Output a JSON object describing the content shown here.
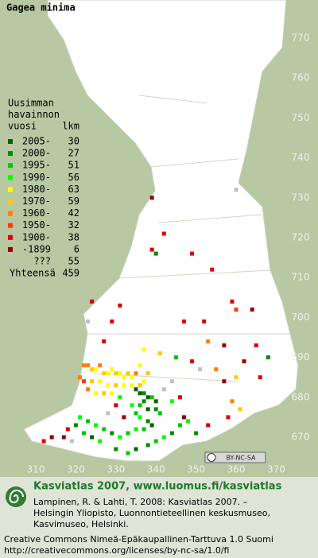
{
  "title": "Gagea minima",
  "xticks": [
    310,
    320,
    330,
    340,
    350,
    360,
    370
  ],
  "yticks": [
    670,
    680,
    690,
    700,
    710,
    720,
    730,
    740,
    750,
    760,
    770
  ],
  "legend": {
    "title": [
      "Uusimman",
      "havainnon",
      "vuosi"
    ],
    "count_header": "lkm",
    "entries": [
      {
        "label": "2005-",
        "color": "#006400",
        "count": 30
      },
      {
        "label": "2000-",
        "color": "#008c00",
        "count": 27
      },
      {
        "label": "1995-",
        "color": "#00c800",
        "count": 51
      },
      {
        "label": "1990-",
        "color": "#00ff00",
        "count": 56
      },
      {
        "label": "1980-",
        "color": "#ffff00",
        "count": 63
      },
      {
        "label": "1970-",
        "color": "#ffc800",
        "count": 59
      },
      {
        "label": "1960-",
        "color": "#ff8000",
        "count": 42
      },
      {
        "label": "1950-",
        "color": "#ff3c00",
        "count": 32
      },
      {
        "label": "1900-",
        "color": "#dc0000",
        "count": 38
      },
      {
        "label": "-1899",
        "color": "#960000",
        "count": 6
      },
      {
        "label": "???",
        "color": "#c0c0c0",
        "count": 55
      }
    ],
    "total": {
      "label": "Yhteensä",
      "value": 459
    }
  },
  "points": [
    [
      339,
      730,
      9
    ],
    [
      339,
      717,
      8
    ],
    [
      340,
      716,
      1
    ],
    [
      349,
      716,
      8
    ],
    [
      354,
      712,
      8
    ],
    [
      342,
      721,
      8
    ],
    [
      360,
      732,
      10
    ],
    [
      359,
      704,
      8
    ],
    [
      364,
      702,
      9
    ],
    [
      360,
      702,
      7
    ],
    [
      331,
      703,
      8
    ],
    [
      329,
      699,
      8
    ],
    [
      327,
      694,
      8
    ],
    [
      323,
      699,
      10
    ],
    [
      324,
      704,
      8
    ],
    [
      347,
      699,
      8
    ],
    [
      352,
      699,
      8
    ],
    [
      353,
      694,
      6
    ],
    [
      357,
      693,
      9
    ],
    [
      365,
      693,
      8
    ],
    [
      362,
      689,
      9
    ],
    [
      368,
      690,
      1
    ],
    [
      366,
      685,
      8
    ],
    [
      360,
      685,
      5
    ],
    [
      337,
      692,
      4
    ],
    [
      341,
      691,
      5
    ],
    [
      345,
      690,
      2
    ],
    [
      349,
      689,
      8
    ],
    [
      351,
      687,
      10
    ],
    [
      355,
      687,
      6
    ],
    [
      357,
      684,
      9
    ],
    [
      359,
      679,
      6
    ],
    [
      361,
      677,
      5
    ],
    [
      358,
      675,
      8
    ],
    [
      353,
      673,
      8
    ],
    [
      350,
      671,
      1
    ],
    [
      347,
      675,
      9
    ],
    [
      344,
      679,
      3
    ],
    [
      322,
      688,
      6
    ],
    [
      323,
      688,
      6
    ],
    [
      324,
      687,
      5
    ],
    [
      325,
      687,
      4
    ],
    [
      326,
      688,
      6
    ],
    [
      327,
      686,
      5
    ],
    [
      328,
      686,
      4
    ],
    [
      329,
      687,
      4
    ],
    [
      330,
      686,
      5
    ],
    [
      331,
      686,
      4
    ],
    [
      332,
      685,
      4
    ],
    [
      333,
      686,
      5
    ],
    [
      334,
      685,
      4
    ],
    [
      335,
      686,
      6
    ],
    [
      321,
      685,
      6
    ],
    [
      322,
      684,
      7
    ],
    [
      324,
      684,
      5
    ],
    [
      326,
      684,
      4
    ],
    [
      328,
      683,
      4
    ],
    [
      330,
      683,
      5
    ],
    [
      332,
      683,
      4
    ],
    [
      334,
      683,
      4
    ],
    [
      323,
      682,
      6
    ],
    [
      325,
      681,
      4
    ],
    [
      327,
      681,
      5
    ],
    [
      329,
      681,
      4
    ],
    [
      331,
      680,
      3
    ],
    [
      336,
      688,
      4
    ],
    [
      338,
      686,
      5
    ],
    [
      337,
      684,
      4
    ],
    [
      336,
      683,
      5
    ],
    [
      335,
      682,
      0
    ],
    [
      336,
      681,
      0
    ],
    [
      337,
      681,
      1
    ],
    [
      338,
      680,
      0
    ],
    [
      339,
      680,
      2
    ],
    [
      340,
      679,
      0
    ],
    [
      337,
      679,
      1
    ],
    [
      336,
      678,
      2
    ],
    [
      338,
      677,
      0
    ],
    [
      340,
      677,
      1
    ],
    [
      341,
      676,
      2
    ],
    [
      334,
      678,
      3
    ],
    [
      335,
      676,
      2
    ],
    [
      336,
      675,
      3
    ],
    [
      338,
      674,
      1
    ],
    [
      339,
      673,
      0
    ],
    [
      337,
      672,
      2
    ],
    [
      335,
      672,
      3
    ],
    [
      333,
      671,
      2
    ],
    [
      331,
      670,
      3
    ],
    [
      329,
      671,
      1
    ],
    [
      327,
      672,
      2
    ],
    [
      325,
      673,
      3
    ],
    [
      323,
      674,
      2
    ],
    [
      321,
      675,
      3
    ],
    [
      320,
      673,
      1
    ],
    [
      322,
      671,
      2
    ],
    [
      324,
      670,
      0
    ],
    [
      326,
      669,
      3
    ],
    [
      330,
      667,
      1
    ],
    [
      333,
      666,
      2
    ],
    [
      335,
      667,
      0
    ],
    [
      338,
      668,
      1
    ],
    [
      340,
      669,
      2
    ],
    [
      342,
      670,
      3
    ],
    [
      344,
      671,
      1
    ],
    [
      346,
      673,
      2
    ],
    [
      348,
      674,
      3
    ],
    [
      318,
      672,
      8
    ],
    [
      317,
      670,
      9
    ],
    [
      319,
      669,
      10
    ],
    [
      314,
      670,
      9
    ],
    [
      312,
      669,
      8
    ],
    [
      328,
      676,
      10
    ],
    [
      330,
      678,
      8
    ],
    [
      332,
      675,
      9
    ],
    [
      342,
      682,
      10
    ],
    [
      344,
      684,
      10
    ],
    [
      346,
      680,
      8
    ]
  ],
  "badge": "BY-NC-SA",
  "footer": {
    "heading": "Kasviatlas 2007, www.luomus.fi/kasviatlas",
    "citation": [
      "Lampinen, R. & Lahti, T. 2008: Kasviatlas 2007. –",
      "Helsingin Yliopisto, Luonnontieteellinen keskusmuseo,",
      "Kasvimuseo, Helsinki."
    ],
    "license": [
      "Creative Commons Nimeä-Epäkaupallinen-Tarttuva 1.0 Suomi",
      "http://creativecommons.org/licenses/by-nc-sa/1.0/fi"
    ]
  }
}
